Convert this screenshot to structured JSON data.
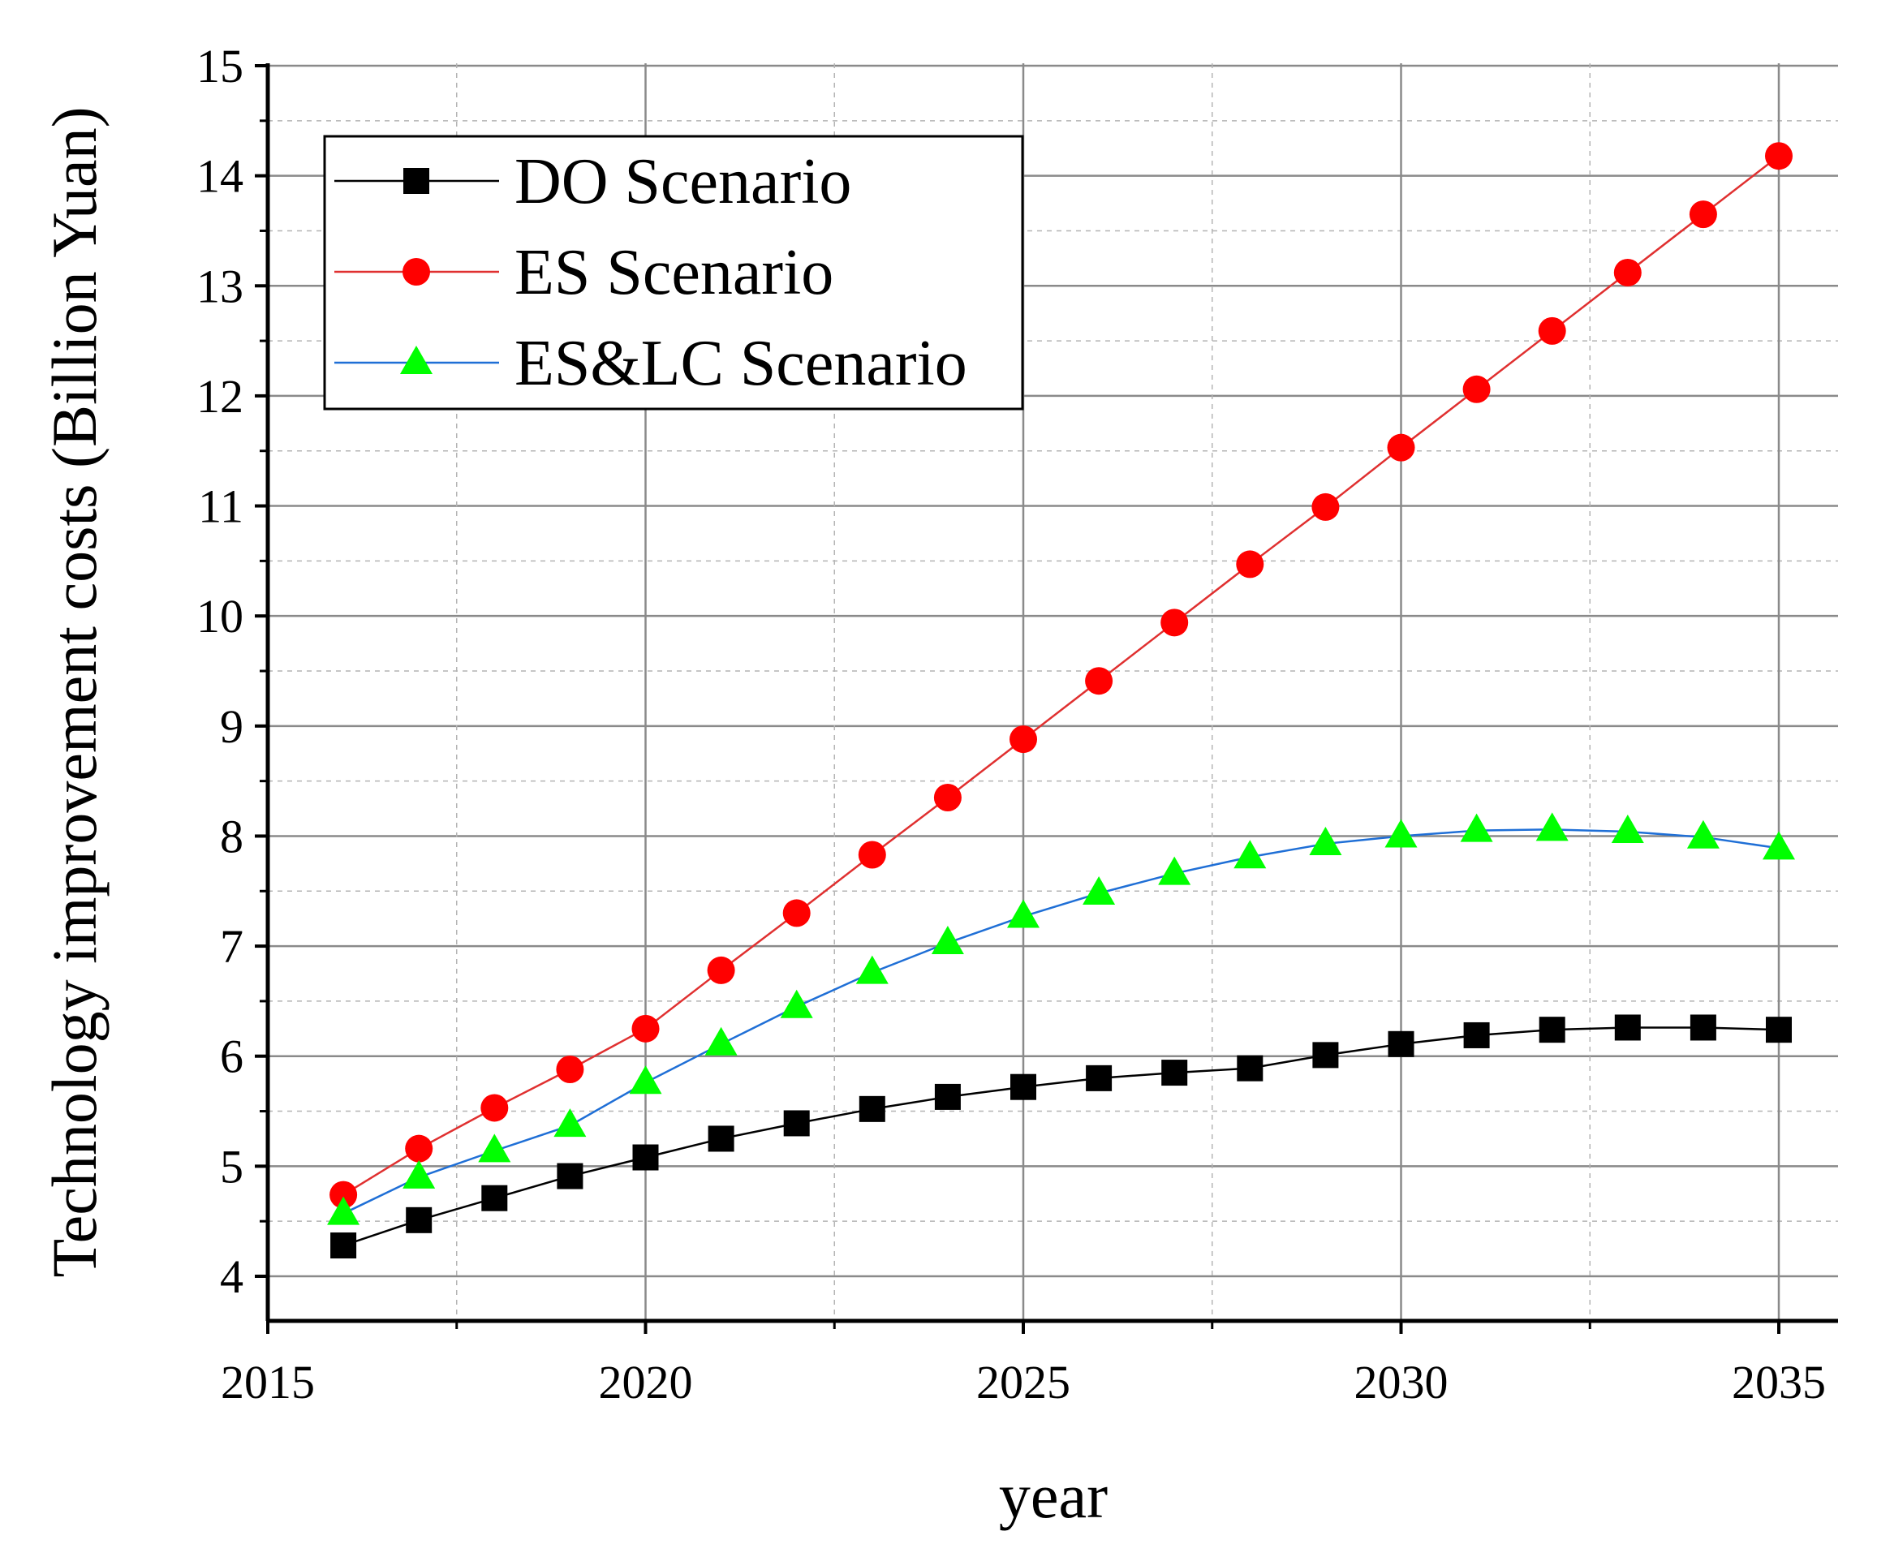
{
  "chart_data": {
    "type": "line",
    "title": "",
    "xlabel": "year",
    "ylabel": "Technology improvement costs (Billion Yuan)",
    "xlim": [
      2015,
      2036
    ],
    "ylim": [
      3.5,
      15
    ],
    "x_ticks": [
      2015,
      2020,
      2025,
      2030,
      2035
    ],
    "x_tick_labels": [
      "2015",
      "2020",
      "2025",
      "2030",
      "2035"
    ],
    "y_ticks": [
      4,
      5,
      6,
      7,
      8,
      9,
      10,
      11,
      12,
      13,
      14,
      15
    ],
    "y_tick_labels": [
      "4",
      "5",
      "6",
      "7",
      "8",
      "9",
      "10",
      "11",
      "12",
      "13",
      "14",
      "15"
    ],
    "grid": true,
    "legend_position": "top-left",
    "x": [
      2016,
      2017,
      2018,
      2019,
      2020,
      2021,
      2022,
      2023,
      2024,
      2025,
      2026,
      2027,
      2028,
      2029,
      2030,
      2031,
      2032,
      2033,
      2034,
      2035
    ],
    "series": [
      {
        "name": "DO Scenario",
        "marker": "square",
        "marker_color": "#000000",
        "line_color": "#000000",
        "values": [
          4.28,
          4.51,
          4.71,
          4.91,
          5.08,
          5.25,
          5.39,
          5.52,
          5.63,
          5.72,
          5.8,
          5.85,
          5.89,
          6.01,
          6.11,
          6.19,
          6.24,
          6.26,
          6.26,
          6.24
        ]
      },
      {
        "name": "ES Scenario",
        "marker": "circle",
        "marker_color": "#ff0000",
        "line_color": "#e03030",
        "values": [
          4.74,
          5.16,
          5.53,
          5.88,
          6.25,
          6.78,
          7.3,
          7.83,
          8.35,
          8.88,
          9.41,
          9.94,
          10.47,
          10.99,
          11.53,
          12.06,
          12.59,
          13.12,
          13.65,
          14.18
        ]
      },
      {
        "name": "ES&LC Scenario",
        "marker": "triangle",
        "marker_color": "#00ff00",
        "line_color": "#1f6fd6",
        "values": [
          4.57,
          4.9,
          5.14,
          5.37,
          5.76,
          6.11,
          6.45,
          6.76,
          7.03,
          7.27,
          7.48,
          7.66,
          7.81,
          7.93,
          8.0,
          8.05,
          8.06,
          8.04,
          7.99,
          7.89
        ]
      }
    ]
  }
}
